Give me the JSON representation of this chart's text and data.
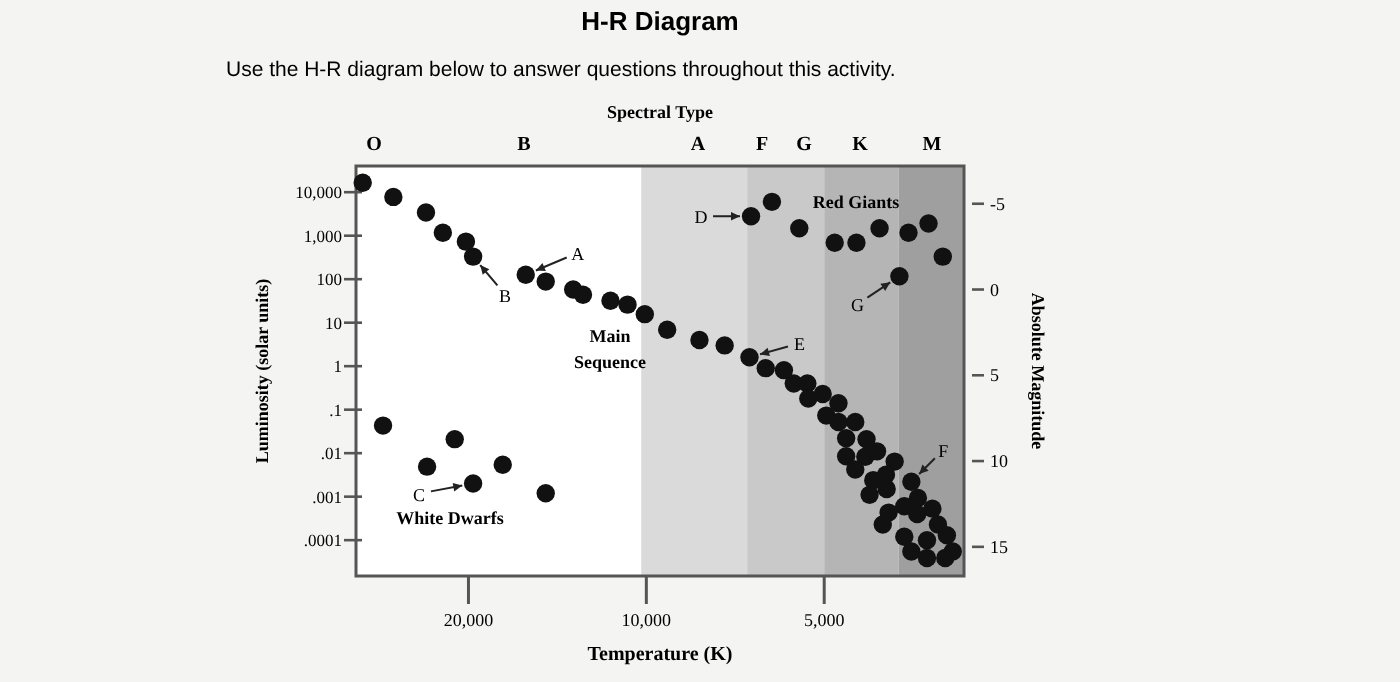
{
  "chart_data": {
    "type": "scatter",
    "title": "H-R Diagram",
    "subtitle": "Use the H-R diagram below to answer questions throughout this activity.",
    "xlabel": "Temperature (K)",
    "ylabel": "Luminosity (solar units)",
    "y2label": "Absolute Magnitude",
    "x2label": "Spectral Type",
    "log": "xy",
    "grid": false,
    "marker": "circle",
    "xlim": [
      31000,
      2900
    ],
    "xticks": [
      {
        "value": 20000,
        "label": "20,000"
      },
      {
        "value": 10000,
        "label": "10,000"
      },
      {
        "value": 5000,
        "label": "5,000"
      }
    ],
    "ylim": [
      1.5e-05,
      40000
    ],
    "yticks": [
      {
        "value": 10000,
        "label": "10,000"
      },
      {
        "value": 1000,
        "label": "1,000"
      },
      {
        "value": 100,
        "label": "100"
      },
      {
        "value": 10,
        "label": "10"
      },
      {
        "value": 1,
        "label": "1"
      },
      {
        "value": 0.1,
        "label": ".1"
      },
      {
        "value": 0.01,
        "label": ".01"
      },
      {
        "value": 0.001,
        "label": ".001"
      },
      {
        "value": 0.0001,
        "label": ".0001"
      }
    ],
    "y2lim": [
      16.7,
      -7.2
    ],
    "y2ticks": [
      -5,
      0,
      5,
      10,
      15
    ],
    "bands": [
      {
        "axis": "x",
        "from": 10200,
        "to": 6750,
        "color": "#dadada"
      },
      {
        "axis": "x",
        "from": 6750,
        "to": 5000,
        "color": "#c9c9c9"
      },
      {
        "axis": "x",
        "from": 5000,
        "to": 3740,
        "color": "#b5b5b5"
      },
      {
        "axis": "x",
        "from": 3740,
        "to": 2900,
        "color": "#9f9f9f"
      }
    ],
    "series": [
      {
        "color": "#111111",
        "x": [
          30200,
          26800,
          23600,
          22100,
          20200,
          19640,
          16000,
          14800,
          13300,
          12800,
          11500,
          10760,
          10060,
          9220,
          8130,
          7370,
          6690,
          6280,
          5850,
          5630,
          5340,
          5320,
          5030,
          4730,
          4960,
          4730,
          4430,
          4590,
          4240,
          4590,
          4260,
          4070,
          4430,
          3800,
          3930,
          4130,
          3920,
          4190,
          3560,
          3470,
          3660,
          3480,
          3890,
          3280,
          3980,
          3210,
          3660,
          3350,
          3100,
          3560,
          3350,
          3120,
          3030,
          6650,
          6130,
          5510,
          4800,
          4410,
          4030,
          3600,
          3330,
          3150,
          3730,
          27900,
          21100,
          23500,
          17500,
          19640,
          14800
        ],
        "values": [
          16500,
          7800,
          3400,
          1170,
          730,
          330,
          126,
          88,
          58,
          44,
          32,
          26,
          15.7,
          6.9,
          4.0,
          3.0,
          1.6,
          0.9,
          0.81,
          0.4,
          0.4,
          0.18,
          0.23,
          0.14,
          0.073,
          0.052,
          0.052,
          0.022,
          0.021,
          0.0085,
          0.0083,
          0.011,
          0.0042,
          0.0064,
          0.0032,
          0.0024,
          0.0015,
          0.0011,
          0.0022,
          0.00093,
          0.0006,
          0.0004,
          0.00043,
          0.00053,
          0.00023,
          0.00023,
          0.00012,
          0.0001,
          0.00013,
          5.5e-05,
          3.9e-05,
          3.9e-05,
          5.5e-05,
          2800,
          6000,
          1480,
          690,
          690,
          1480,
          1170,
          1900,
          330,
          117,
          0.043,
          0.021,
          0.0049,
          0.0054,
          0.002,
          0.0012
        ]
      }
    ],
    "annotations": [
      {
        "text": "A",
        "x": 16000,
        "y": 126
      },
      {
        "text": "B",
        "x": 19640,
        "y": 330
      },
      {
        "text": "C",
        "x": 19640,
        "y": 0.002
      },
      {
        "text": "D",
        "x": 6650,
        "y": 2800
      },
      {
        "text": "E",
        "x": 6690,
        "y": 1.6
      },
      {
        "text": "F",
        "x": 3560,
        "y": 0.0022
      },
      {
        "text": "G",
        "x": 3730,
        "y": 117
      },
      "Main\nSequence",
      "Red Giants",
      "White Dwarfs",
      "O",
      "B",
      "A",
      "F",
      "G",
      "K",
      "M"
    ]
  }
}
